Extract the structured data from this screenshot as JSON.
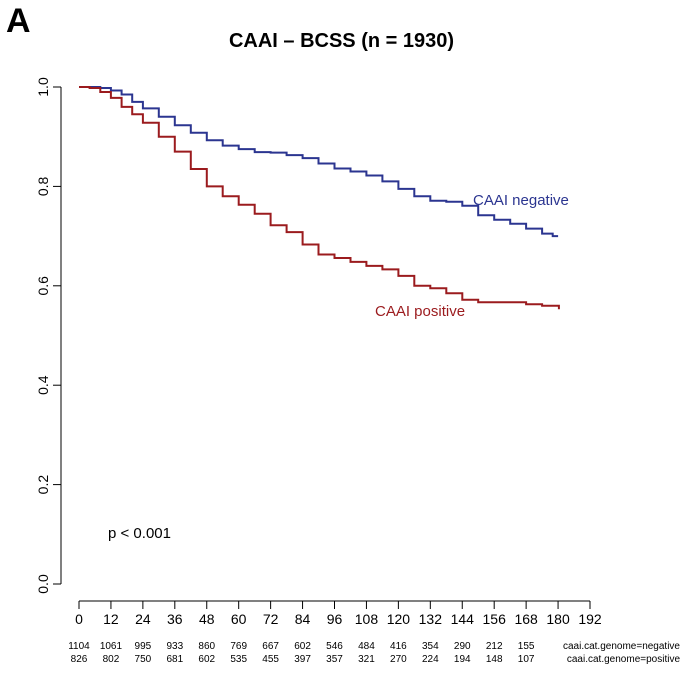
{
  "panel_label": "A",
  "chart_data": {
    "type": "line",
    "title": "CAAI – BCSS (n = 1930)",
    "xlabel": "",
    "ylabel": "",
    "xlim": [
      0,
      192
    ],
    "ylim": [
      0,
      1
    ],
    "x_ticks": [
      0,
      12,
      24,
      36,
      48,
      60,
      72,
      84,
      96,
      108,
      120,
      132,
      144,
      156,
      168,
      180,
      192
    ],
    "y_ticks": [
      0.0,
      0.2,
      0.4,
      0.6,
      0.8,
      1.0
    ],
    "y_tick_labels": [
      "0.0",
      "0.2",
      "0.4",
      "0.6",
      "0.8",
      "1.0"
    ],
    "grid": false,
    "step": true,
    "series": [
      {
        "name": "CAAI negative",
        "color": "#2b3590",
        "x": [
          0,
          4,
          8,
          12,
          16,
          20,
          24,
          30,
          36,
          42,
          48,
          54,
          60,
          66,
          72,
          78,
          84,
          90,
          96,
          102,
          108,
          114,
          120,
          126,
          132,
          138,
          144,
          150,
          156,
          162,
          168,
          174,
          178,
          180
        ],
        "y": [
          1.0,
          1.0,
          0.998,
          0.993,
          0.985,
          0.97,
          0.957,
          0.94,
          0.923,
          0.908,
          0.893,
          0.882,
          0.875,
          0.869,
          0.868,
          0.863,
          0.857,
          0.846,
          0.836,
          0.83,
          0.822,
          0.81,
          0.795,
          0.78,
          0.771,
          0.769,
          0.761,
          0.742,
          0.733,
          0.725,
          0.715,
          0.705,
          0.7,
          0.7
        ]
      },
      {
        "name": "CAAI positive",
        "color": "#9b1b1e",
        "x": [
          0,
          4,
          8,
          12,
          16,
          20,
          24,
          30,
          36,
          42,
          48,
          54,
          60,
          66,
          72,
          78,
          84,
          90,
          96,
          102,
          108,
          114,
          120,
          126,
          132,
          138,
          144,
          150,
          156,
          162,
          168,
          174,
          180,
          180.3
        ],
        "y": [
          1.0,
          0.998,
          0.99,
          0.978,
          0.96,
          0.945,
          0.928,
          0.9,
          0.87,
          0.835,
          0.8,
          0.78,
          0.763,
          0.745,
          0.722,
          0.708,
          0.683,
          0.663,
          0.656,
          0.648,
          0.64,
          0.633,
          0.62,
          0.6,
          0.595,
          0.585,
          0.572,
          0.567,
          0.567,
          0.567,
          0.563,
          0.56,
          0.56,
          0.553
        ]
      }
    ],
    "annotations": [
      {
        "text": "CAAI negative",
        "series": "CAAI negative"
      },
      {
        "text": "CAAI positive",
        "series": "CAAI positive"
      },
      {
        "text": "p < 0.001"
      }
    ],
    "risk_table": {
      "rows": [
        {
          "label": "caai.cat.genome=negative",
          "values": [
            1104,
            1061,
            995,
            933,
            860,
            769,
            667,
            602,
            546,
            484,
            416,
            354,
            290,
            212,
            155
          ]
        },
        {
          "label": "caai.cat.genome=positive",
          "values": [
            826,
            802,
            750,
            681,
            602,
            535,
            455,
            397,
            357,
            321,
            270,
            224,
            194,
            148,
            107
          ]
        }
      ]
    }
  }
}
